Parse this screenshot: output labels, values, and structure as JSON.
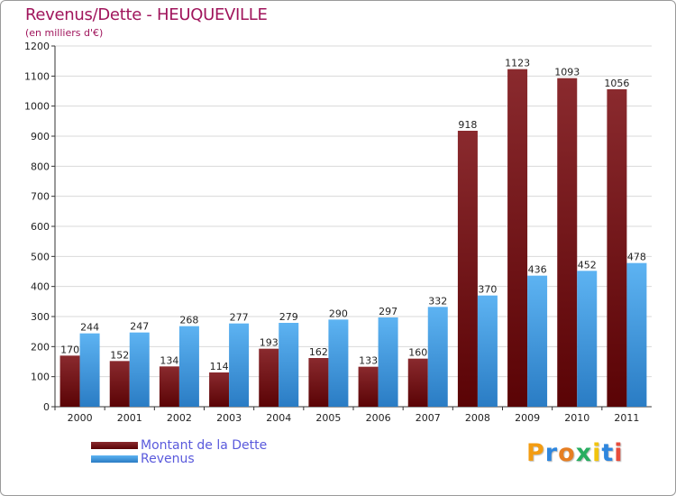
{
  "colors": {
    "title": "#a0155c",
    "dette_light": "#8a2a2e",
    "dette_dark": "#5a0305",
    "revenus_light": "#5db3f2",
    "revenus_dark": "#2a7cc4",
    "legend_text": "#5a5adc",
    "grid": "#d9d9d9"
  },
  "logo": {
    "text": "Proxiti",
    "letters": [
      {
        "char": "P",
        "color": "#f39c12"
      },
      {
        "char": "r",
        "color": "#2e86de"
      },
      {
        "char": "o",
        "color": "#e67e22"
      },
      {
        "char": "x",
        "color": "#27ae60"
      },
      {
        "char": "i",
        "color": "#f1c40f"
      },
      {
        "char": "t",
        "color": "#2e86de"
      },
      {
        "char": "i",
        "color": "#e74c3c"
      }
    ]
  },
  "chart_data": {
    "type": "bar",
    "title": "Revenus/Dette - HEUQUEVILLE",
    "subtitle": "(en milliers d'€)",
    "xlabel": "",
    "ylabel": "",
    "ylim": [
      0,
      1200
    ],
    "y_ticks": [
      0,
      100,
      200,
      300,
      400,
      500,
      600,
      700,
      800,
      900,
      1000,
      1100,
      1200
    ],
    "grid": true,
    "legend_position": "bottom-left",
    "categories": [
      "2000",
      "2001",
      "2002",
      "2003",
      "2004",
      "2005",
      "2006",
      "2007",
      "2008",
      "2009",
      "2010",
      "2011"
    ],
    "series": [
      {
        "name": "Montant de la Dette",
        "values": [
          170,
          152,
          134,
          114,
          193,
          162,
          133,
          160,
          918,
          1123,
          1093,
          1056
        ]
      },
      {
        "name": "Revenus",
        "values": [
          244,
          247,
          268,
          277,
          279,
          290,
          297,
          332,
          370,
          436,
          452,
          478
        ]
      }
    ]
  }
}
